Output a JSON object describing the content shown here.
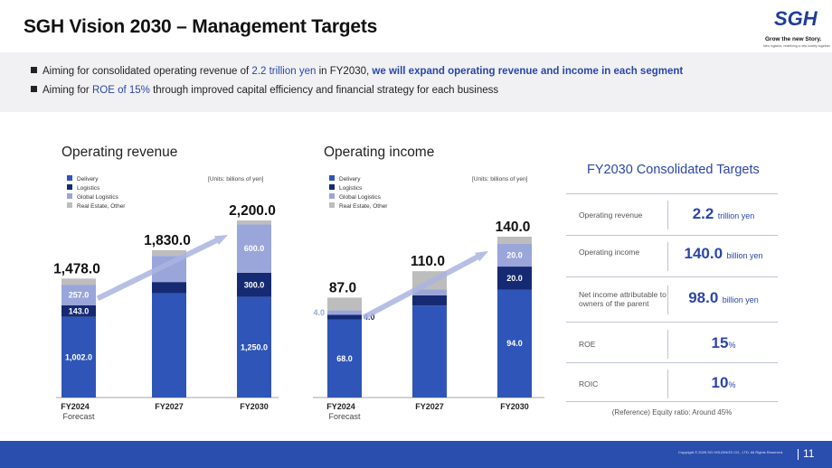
{
  "title": "SGH Vision 2030 – Management Targets",
  "logo": {
    "mark": "SGH",
    "tagline": "Grow the new Story.",
    "subline": "New logistics, redefining a new society together."
  },
  "bullets": [
    {
      "pre": "Aiming for consolidated operating revenue of ",
      "hl1": "2.2 trillion yen",
      "mid": " in FY2030, ",
      "hl2": "we will expand operating revenue and income in each segment",
      "post": ""
    },
    {
      "pre": "Aiming for ",
      "hl1": "ROE of 15%",
      "mid": " through improved capital efficiency and financial strategy for each business",
      "hl2": "",
      "post": ""
    }
  ],
  "legend": [
    {
      "name": "Delivery",
      "color": "#2f55b8"
    },
    {
      "name": "Logistics",
      "color": "#152a72"
    },
    {
      "name": "Global Logistics",
      "color": "#9aa5da"
    },
    {
      "name": "Real Estate, Other",
      "color": "#bdbdbd"
    }
  ],
  "chart_data": [
    {
      "type": "bar",
      "title": "Operating revenue",
      "units": "[Units: billions of yen]",
      "categories": [
        "FY2024",
        "FY2027",
        "FY2030"
      ],
      "category_sublabels": [
        "Forecast",
        "",
        ""
      ],
      "totals": [
        1478.0,
        1830.0,
        2200.0
      ],
      "total_labels": [
        "1,478.0",
        "1,830.0",
        "2,200.0"
      ],
      "ylim": [
        0,
        2200
      ],
      "series": [
        {
          "name": "Delivery",
          "values": [
            1002.0,
            1295,
            1250.0
          ],
          "labels": [
            "1,002.0",
            "",
            "1,250.0"
          ]
        },
        {
          "name": "Logistics",
          "values": [
            143.0,
            140,
            300.0
          ],
          "labels": [
            "143.0",
            "",
            "300.0"
          ]
        },
        {
          "name": "Global Logistics",
          "values": [
            257.0,
            325,
            600.0
          ],
          "labels": [
            "257.0",
            "",
            "600.0"
          ]
        },
        {
          "name": "Real Estate, Other",
          "values": [
            76,
            70,
            50
          ],
          "labels": [
            "",
            "",
            ""
          ]
        }
      ]
    },
    {
      "type": "bar",
      "title": "Operating income",
      "units": "[Units: billions of yen]",
      "categories": [
        "FY2024",
        "FY2027",
        "FY2030"
      ],
      "category_sublabels": [
        "Forecast",
        "",
        ""
      ],
      "totals": [
        87.0,
        110.0,
        140.0
      ],
      "total_labels": [
        "87.0",
        "110.0",
        "140.0"
      ],
      "ylim": [
        0,
        140
      ],
      "series": [
        {
          "name": "Delivery",
          "values": [
            68.0,
            80,
            94.0
          ],
          "labels": [
            "68.0",
            "",
            "94.0"
          ]
        },
        {
          "name": "Logistics",
          "values": [
            4.0,
            9,
            20.0
          ],
          "labels": [
            "4.0",
            "",
            "20.0"
          ]
        },
        {
          "name": "Global Logistics",
          "values": [
            4.0,
            5,
            20.0
          ],
          "labels": [
            "4.0",
            "",
            "20.0"
          ]
        },
        {
          "name": "Real Estate, Other",
          "values": [
            11,
            16,
            6
          ],
          "labels": [
            "",
            "",
            ""
          ]
        }
      ]
    }
  ],
  "targets": {
    "title": "FY2030 Consolidated Targets",
    "rows": [
      {
        "label": "Operating revenue",
        "value": "2.2",
        "unit": "trillion yen"
      },
      {
        "label": "Operating income",
        "value": "140.0",
        "unit": "billion yen"
      },
      {
        "label": "Net income attributable to owners of the parent",
        "value": "98.0",
        "unit": "billion yen"
      },
      {
        "label": "ROE",
        "value": "15",
        "unit": "%"
      },
      {
        "label": "ROIC",
        "value": "10",
        "unit": "%"
      }
    ],
    "reference": "(Reference) Equity ratio: Around 45%"
  },
  "footer": {
    "copyright": "Copyright © 2025 SG HOLDINGS CO., LTD. All Rights Reserved.",
    "page": "11"
  }
}
